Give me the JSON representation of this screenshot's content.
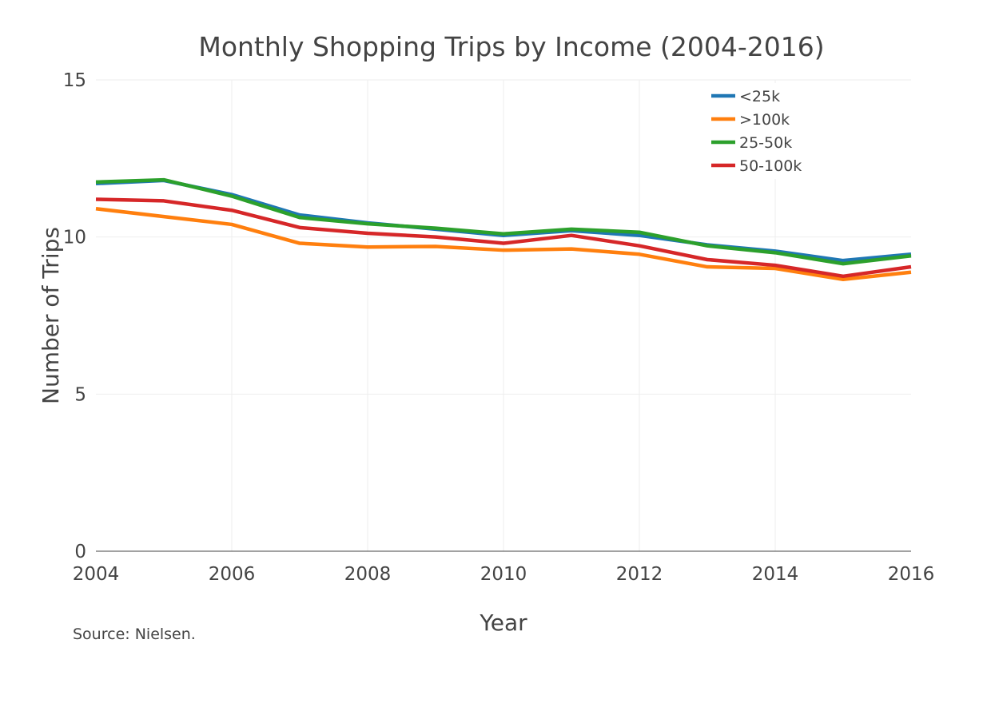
{
  "chart_data": {
    "type": "line",
    "title": "Monthly Shopping Trips by Income (2004-2016)",
    "xlabel": "Year",
    "ylabel": "Number of Trips",
    "x": [
      2004,
      2005,
      2006,
      2007,
      2008,
      2009,
      2010,
      2011,
      2012,
      2013,
      2014,
      2015,
      2016
    ],
    "xlim": [
      2004,
      2016
    ],
    "ylim": [
      0,
      15
    ],
    "x_ticks": [
      "2004",
      "2006",
      "2008",
      "2010",
      "2012",
      "2014",
      "2016"
    ],
    "y_ticks": [
      "0",
      "5",
      "10",
      "15"
    ],
    "grid": true,
    "legend_position": "top-right",
    "series": [
      {
        "name": "<25k",
        "color": "#1f77b4",
        "values": [
          11.7,
          11.8,
          11.35,
          10.7,
          10.45,
          10.25,
          10.05,
          10.2,
          10.05,
          9.75,
          9.55,
          9.25,
          9.45
        ]
      },
      {
        "name": ">100k",
        "color": "#ff7f0e",
        "values": [
          10.9,
          10.65,
          10.4,
          9.8,
          9.68,
          9.7,
          9.58,
          9.62,
          9.45,
          9.05,
          9.0,
          8.65,
          8.88
        ]
      },
      {
        "name": "25-50k",
        "color": "#2ca02c",
        "values": [
          11.75,
          11.82,
          11.3,
          10.62,
          10.42,
          10.28,
          10.1,
          10.25,
          10.15,
          9.72,
          9.5,
          9.15,
          9.4
        ]
      },
      {
        "name": "50-100k",
        "color": "#d62728",
        "values": [
          11.2,
          11.15,
          10.85,
          10.3,
          10.12,
          10.0,
          9.8,
          10.05,
          9.72,
          9.28,
          9.1,
          8.75,
          9.05
        ]
      }
    ]
  },
  "source_note": "Source: Nielsen."
}
